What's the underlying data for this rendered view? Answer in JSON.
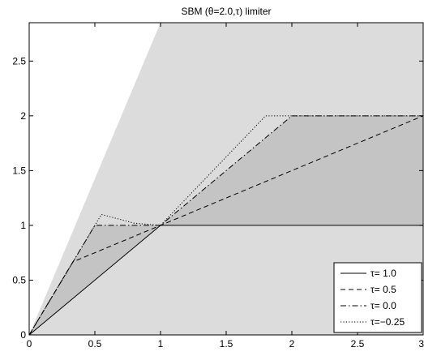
{
  "chart_data": {
    "type": "line",
    "title": "SBM (θ=2.0,τ) limiter",
    "xlabel": "",
    "ylabel": "",
    "xlim": [
      0,
      3
    ],
    "ylim": [
      0,
      2.85
    ],
    "x_ticks": [
      "0",
      "0.5",
      "1",
      "1.5",
      "2",
      "2.5",
      "3"
    ],
    "y_ticks": [
      "0",
      "0.5",
      "1",
      "1.5",
      "2",
      "2.5"
    ],
    "x_tick_values": [
      0,
      0.5,
      1,
      1.5,
      2,
      2.5,
      3
    ],
    "y_tick_values": [
      0,
      0.5,
      1,
      1.5,
      2,
      2.5
    ],
    "grid": false,
    "legend_position": "bottom-right",
    "regions": [
      {
        "color": "#dcdcdc",
        "points": [
          [
            0,
            0
          ],
          [
            1,
            2.85
          ],
          [
            3,
            2.85
          ],
          [
            3,
            0
          ]
        ]
      },
      {
        "color": "#c4c4c4",
        "points": [
          [
            0,
            0
          ],
          [
            0.5,
            1
          ],
          [
            1,
            1
          ],
          [
            2,
            2
          ],
          [
            3,
            2
          ],
          [
            3,
            1
          ],
          [
            1,
            1
          ],
          [
            0.5,
            0.5
          ]
        ]
      }
    ],
    "series": [
      {
        "name": "τ= 1.0",
        "style": "solid",
        "x": [
          0,
          1,
          3
        ],
        "y": [
          0,
          1,
          1
        ]
      },
      {
        "name": "τ= 0.5",
        "style": "dashed",
        "x": [
          0,
          0.333,
          1,
          3
        ],
        "y": [
          0,
          0.667,
          1,
          2
        ]
      },
      {
        "name": "τ= 0.0",
        "style": "dashdot",
        "x": [
          0,
          0.5,
          1,
          2,
          3
        ],
        "y": [
          0,
          1,
          1,
          2,
          2
        ]
      },
      {
        "name": "τ=−0.25",
        "style": "dotted",
        "x": [
          0,
          0.55,
          0.8,
          1,
          1.8,
          3
        ],
        "y": [
          0,
          1.1,
          1.02,
          1,
          2,
          2
        ]
      }
    ]
  }
}
